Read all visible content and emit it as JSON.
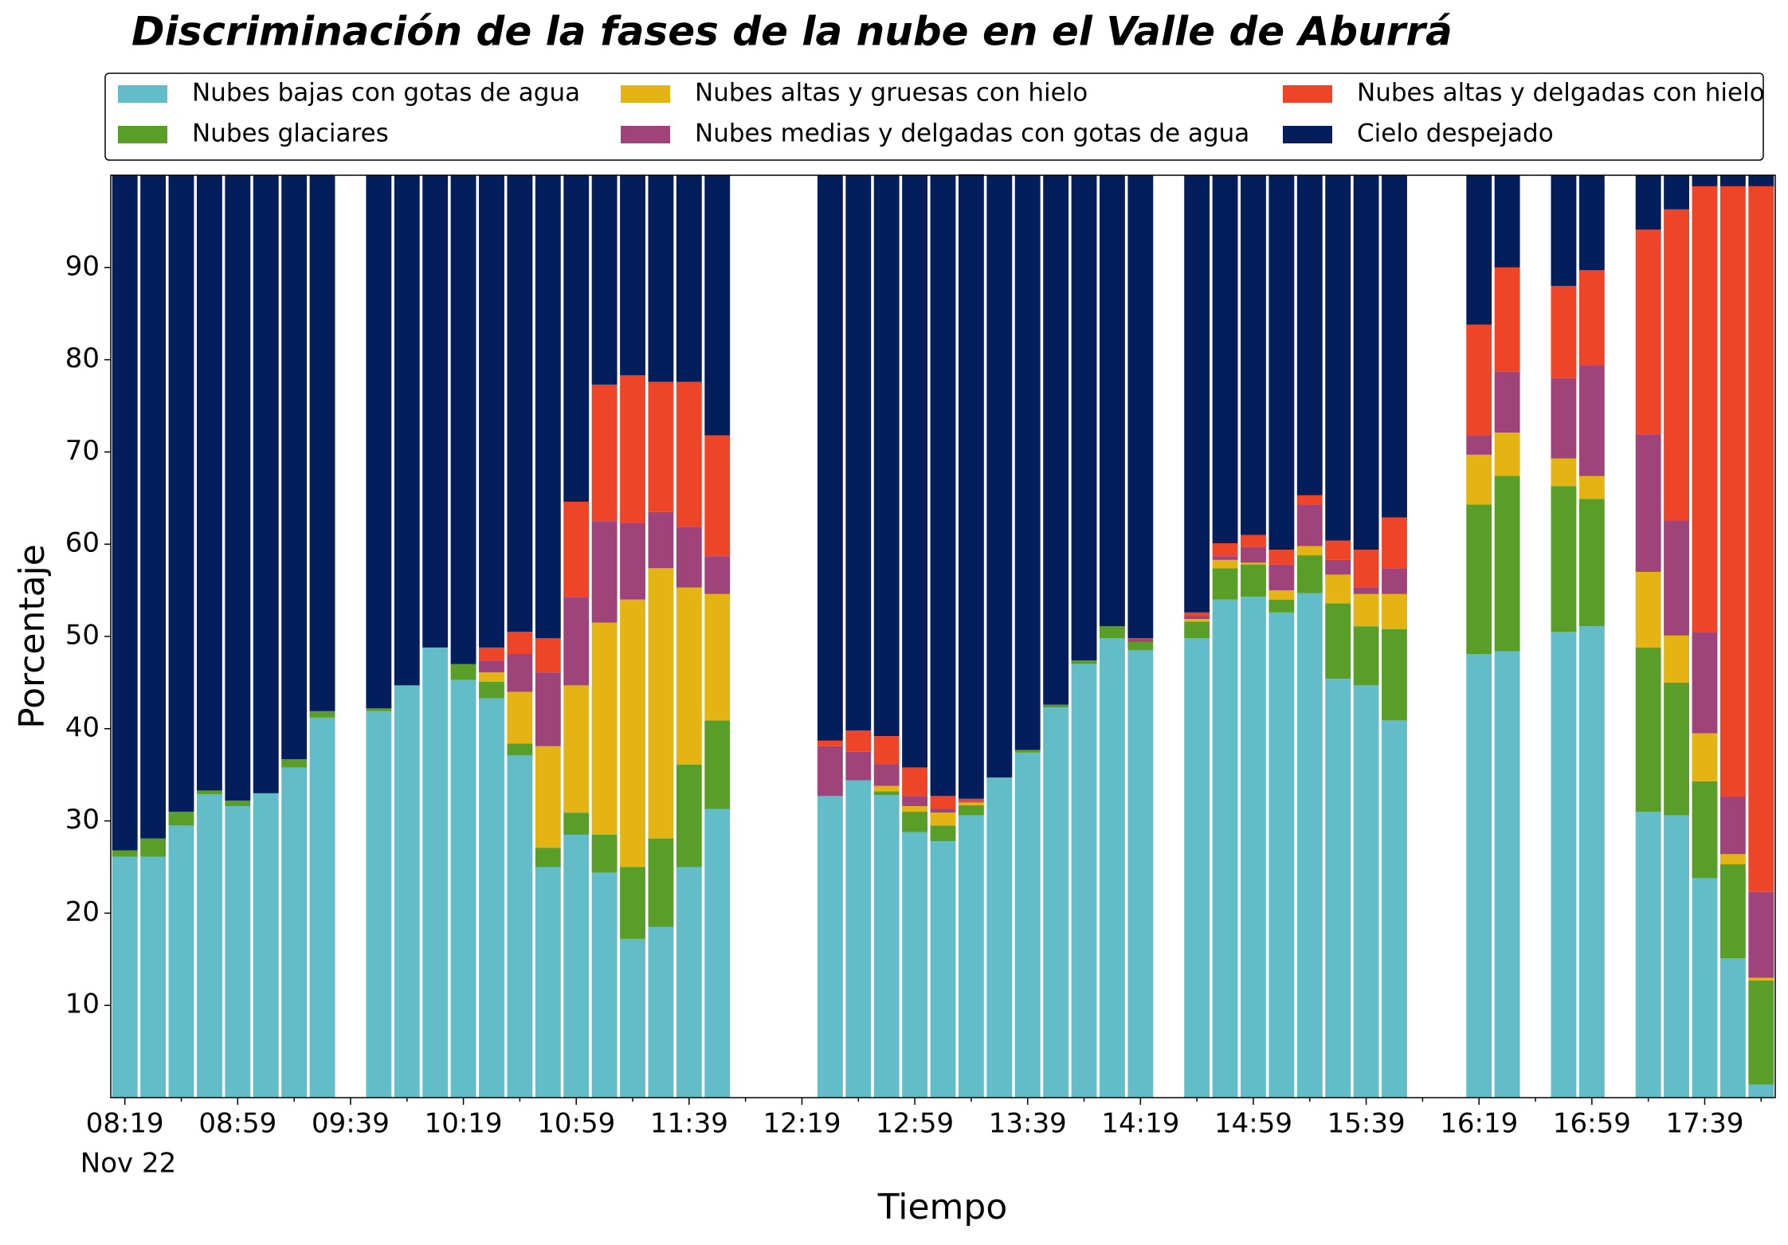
{
  "chart_data": {
    "type": "stacked_bar",
    "title": "Discriminación de la fases de la nube en el Valle de Aburrá",
    "x_label": "Tiempo",
    "y_label": "Porcentaje",
    "date_label": "Nov 22",
    "categories": [
      "08:19",
      null,
      null,
      null,
      "08:59",
      null,
      null,
      null,
      "09:39",
      null,
      null,
      null,
      "10:19",
      null,
      null,
      null,
      "10:59",
      null,
      null,
      null,
      "11:39",
      null,
      null,
      null,
      "12:19",
      null,
      null,
      null,
      "12:59",
      null,
      null,
      null,
      "13:39",
      null,
      null,
      null,
      "14:19",
      null,
      null,
      null,
      "14:59",
      null,
      null,
      null,
      "15:39",
      null,
      null,
      null,
      "16:19",
      null,
      null,
      null,
      "16:59",
      null,
      null,
      null,
      "17:39",
      null,
      null
    ],
    "ylim": [
      0,
      100
    ],
    "yticks": [
      10,
      20,
      30,
      40,
      50,
      60,
      70,
      80,
      90
    ],
    "legend": "top outside",
    "series": [
      {
        "name": "Nubes bajas con gotas de agua",
        "color": "#63bdc8",
        "values": [
          26.1,
          26.1,
          29.5,
          32.9,
          31.6,
          33.0,
          35.8,
          41.2,
          null,
          41.9,
          44.7,
          48.8,
          45.3,
          43.3,
          37.1,
          25.0,
          28.5,
          24.4,
          17.2,
          18.5,
          25.0,
          31.3,
          null,
          null,
          null,
          32.7,
          34.4,
          32.8,
          28.8,
          27.8,
          30.6,
          34.7,
          37.4,
          42.3,
          47.0,
          49.8,
          48.5,
          null,
          49.8,
          54.0,
          54.3,
          52.6,
          54.7,
          45.4,
          44.7,
          40.9,
          null,
          null,
          48.1,
          48.4,
          null,
          50.5,
          51.1,
          null,
          31.0,
          30.6,
          23.8,
          15.1,
          1.4
        ]
      },
      {
        "name": "Nubes glaciares",
        "color": "#5a9e2a",
        "values": [
          0.7,
          2.0,
          1.5,
          0.4,
          0.6,
          0,
          0.9,
          0.7,
          null,
          0.3,
          0,
          0,
          1.7,
          1.8,
          1.3,
          2.1,
          2.4,
          4.1,
          7.8,
          9.6,
          11.1,
          9.6,
          null,
          null,
          null,
          0,
          0,
          0.4,
          2.2,
          1.7,
          1.1,
          0,
          0.3,
          0.3,
          0.4,
          1.3,
          0.9,
          null,
          1.8,
          3.4,
          3.5,
          1.4,
          4.1,
          8.2,
          6.4,
          9.9,
          null,
          null,
          16.2,
          19.0,
          null,
          15.8,
          13.8,
          null,
          17.8,
          14.4,
          10.5,
          10.2,
          11.3
        ]
      },
      {
        "name": "Nubes altas y gruesas con hielo",
        "color": "#e3b414",
        "values": [
          0,
          0,
          0,
          0,
          0,
          0,
          0,
          0,
          null,
          0,
          0,
          0,
          0,
          1.0,
          5.6,
          11.0,
          13.8,
          23.0,
          29.0,
          29.3,
          19.2,
          13.7,
          null,
          null,
          null,
          0,
          0,
          0.6,
          0.6,
          1.4,
          0.3,
          0,
          0,
          0,
          0,
          0,
          0,
          null,
          0.3,
          0.9,
          0.2,
          1.0,
          1.0,
          3.1,
          3.5,
          3.8,
          null,
          null,
          5.4,
          4.7,
          null,
          3.0,
          2.5,
          null,
          8.2,
          5.1,
          5.2,
          1.1,
          0.3
        ]
      },
      {
        "name": "Nubes medias y delgadas con gotas de agua",
        "color": "#a0437a",
        "values": [
          0,
          0,
          0,
          0,
          0,
          0,
          0,
          0,
          null,
          0,
          0,
          0,
          0,
          1.3,
          4.1,
          8.0,
          9.6,
          11.0,
          8.3,
          6.1,
          6.6,
          4.1,
          null,
          null,
          null,
          5.4,
          3.1,
          2.3,
          1.1,
          0.4,
          0.1,
          0,
          0,
          0,
          0,
          0,
          0.3,
          null,
          0.3,
          0.4,
          1.7,
          2.8,
          4.5,
          1.6,
          0.7,
          2.8,
          null,
          null,
          2.1,
          6.6,
          null,
          8.7,
          12.0,
          null,
          14.9,
          12.5,
          11.0,
          6.2,
          9.3
        ]
      },
      {
        "name": "Nubes altas y delgadas con hielo",
        "color": "#ee4428",
        "values": [
          0,
          0,
          0,
          0,
          0,
          0,
          0,
          0,
          null,
          0,
          0,
          0,
          0,
          1.4,
          2.4,
          3.7,
          10.3,
          14.8,
          16.0,
          14.1,
          15.7,
          13.1,
          null,
          null,
          null,
          0.6,
          2.3,
          3.1,
          3.1,
          1.4,
          0.3,
          0,
          0,
          0,
          0,
          0,
          0.1,
          null,
          0.4,
          1.4,
          1.3,
          1.6,
          1.0,
          2.1,
          4.1,
          5.5,
          null,
          null,
          12.0,
          11.3,
          null,
          10.0,
          10.3,
          null,
          22.2,
          33.7,
          48.3,
          66.2,
          76.5
        ]
      },
      {
        "name": "Cielo despejado",
        "color": "#041e5c",
        "values": [
          73.2,
          71.9,
          69.0,
          66.7,
          67.8,
          67.0,
          63.3,
          58.1,
          null,
          57.8,
          55.3,
          51.2,
          53.0,
          51.2,
          49.5,
          50.2,
          35.4,
          22.7,
          21.7,
          22.4,
          22.4,
          28.2,
          null,
          null,
          null,
          61.3,
          60.2,
          60.8,
          64.2,
          67.3,
          67.7,
          65.3,
          62.3,
          57.4,
          52.6,
          48.9,
          50.2,
          null,
          47.4,
          39.9,
          39.0,
          40.6,
          34.7,
          39.6,
          40.6,
          37.1,
          null,
          null,
          16.2,
          10.0,
          null,
          12.0,
          10.3,
          null,
          5.9,
          3.7,
          1.2,
          1.2,
          1.2
        ]
      }
    ]
  }
}
